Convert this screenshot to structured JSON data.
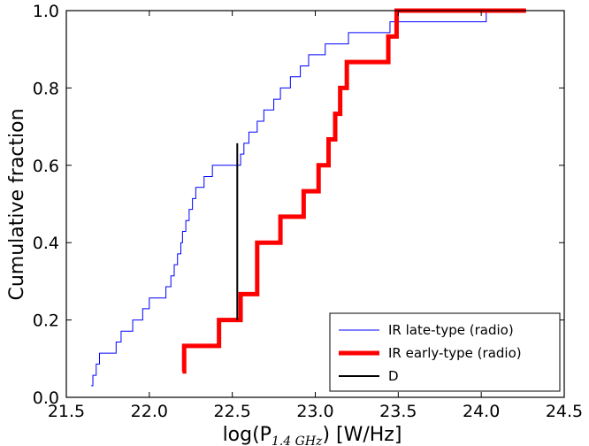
{
  "chart_data": {
    "type": "line",
    "subtype": "step-cdf",
    "title": "",
    "xlabel": {
      "prefix": "log(P",
      "subscript": "1.4 GHz",
      "suffix": ") [W/Hz]"
    },
    "ylabel": "Cumulative fraction",
    "xlim": [
      21.5,
      24.5
    ],
    "ylim": [
      0.0,
      1.0
    ],
    "xticks": [
      "21.5",
      "22.0",
      "22.5",
      "23.0",
      "23.5",
      "24.0",
      "24.5"
    ],
    "yticks": [
      "0.0",
      "0.2",
      "0.4",
      "0.6",
      "0.8",
      "1.0"
    ],
    "grid": false,
    "legend_position": "bottom-right",
    "series": [
      {
        "name": "IR late-type (radio)",
        "color": "#0000ff",
        "style": "thin",
        "points": [
          [
            21.65,
            0.03
          ],
          [
            21.66,
            0.057
          ],
          [
            21.68,
            0.086
          ],
          [
            21.7,
            0.114
          ],
          [
            21.8,
            0.143
          ],
          [
            21.83,
            0.171
          ],
          [
            21.9,
            0.2
          ],
          [
            21.96,
            0.229
          ],
          [
            22.0,
            0.257
          ],
          [
            22.1,
            0.286
          ],
          [
            22.13,
            0.314
          ],
          [
            22.15,
            0.343
          ],
          [
            22.17,
            0.371
          ],
          [
            22.19,
            0.4
          ],
          [
            22.2,
            0.429
          ],
          [
            22.22,
            0.457
          ],
          [
            22.24,
            0.486
          ],
          [
            22.26,
            0.514
          ],
          [
            22.28,
            0.543
          ],
          [
            22.33,
            0.571
          ],
          [
            22.38,
            0.6
          ],
          [
            22.55,
            0.629
          ],
          [
            22.57,
            0.657
          ],
          [
            22.6,
            0.686
          ],
          [
            22.65,
            0.714
          ],
          [
            22.69,
            0.743
          ],
          [
            22.75,
            0.771
          ],
          [
            22.79,
            0.8
          ],
          [
            22.85,
            0.829
          ],
          [
            22.91,
            0.857
          ],
          [
            22.96,
            0.886
          ],
          [
            23.06,
            0.914
          ],
          [
            23.2,
            0.943
          ],
          [
            23.45,
            0.971
          ],
          [
            24.03,
            1.0
          ]
        ]
      },
      {
        "name": "IR early-type (radio)",
        "color": "#ff0000",
        "style": "thick",
        "points": [
          [
            22.2,
            0.067
          ],
          [
            22.21,
            0.133
          ],
          [
            22.42,
            0.2
          ],
          [
            22.55,
            0.267
          ],
          [
            22.65,
            0.4
          ],
          [
            22.79,
            0.467
          ],
          [
            22.93,
            0.533
          ],
          [
            23.02,
            0.6
          ],
          [
            23.08,
            0.667
          ],
          [
            23.12,
            0.733
          ],
          [
            23.15,
            0.8
          ],
          [
            23.19,
            0.867
          ],
          [
            23.44,
            0.933
          ],
          [
            23.49,
            1.0
          ],
          [
            24.27,
            1.0
          ]
        ]
      },
      {
        "name": "D",
        "color": "#000000",
        "style": "vertical-segment",
        "x": 22.53,
        "y_from": 0.2,
        "y_to": 0.657
      }
    ]
  }
}
